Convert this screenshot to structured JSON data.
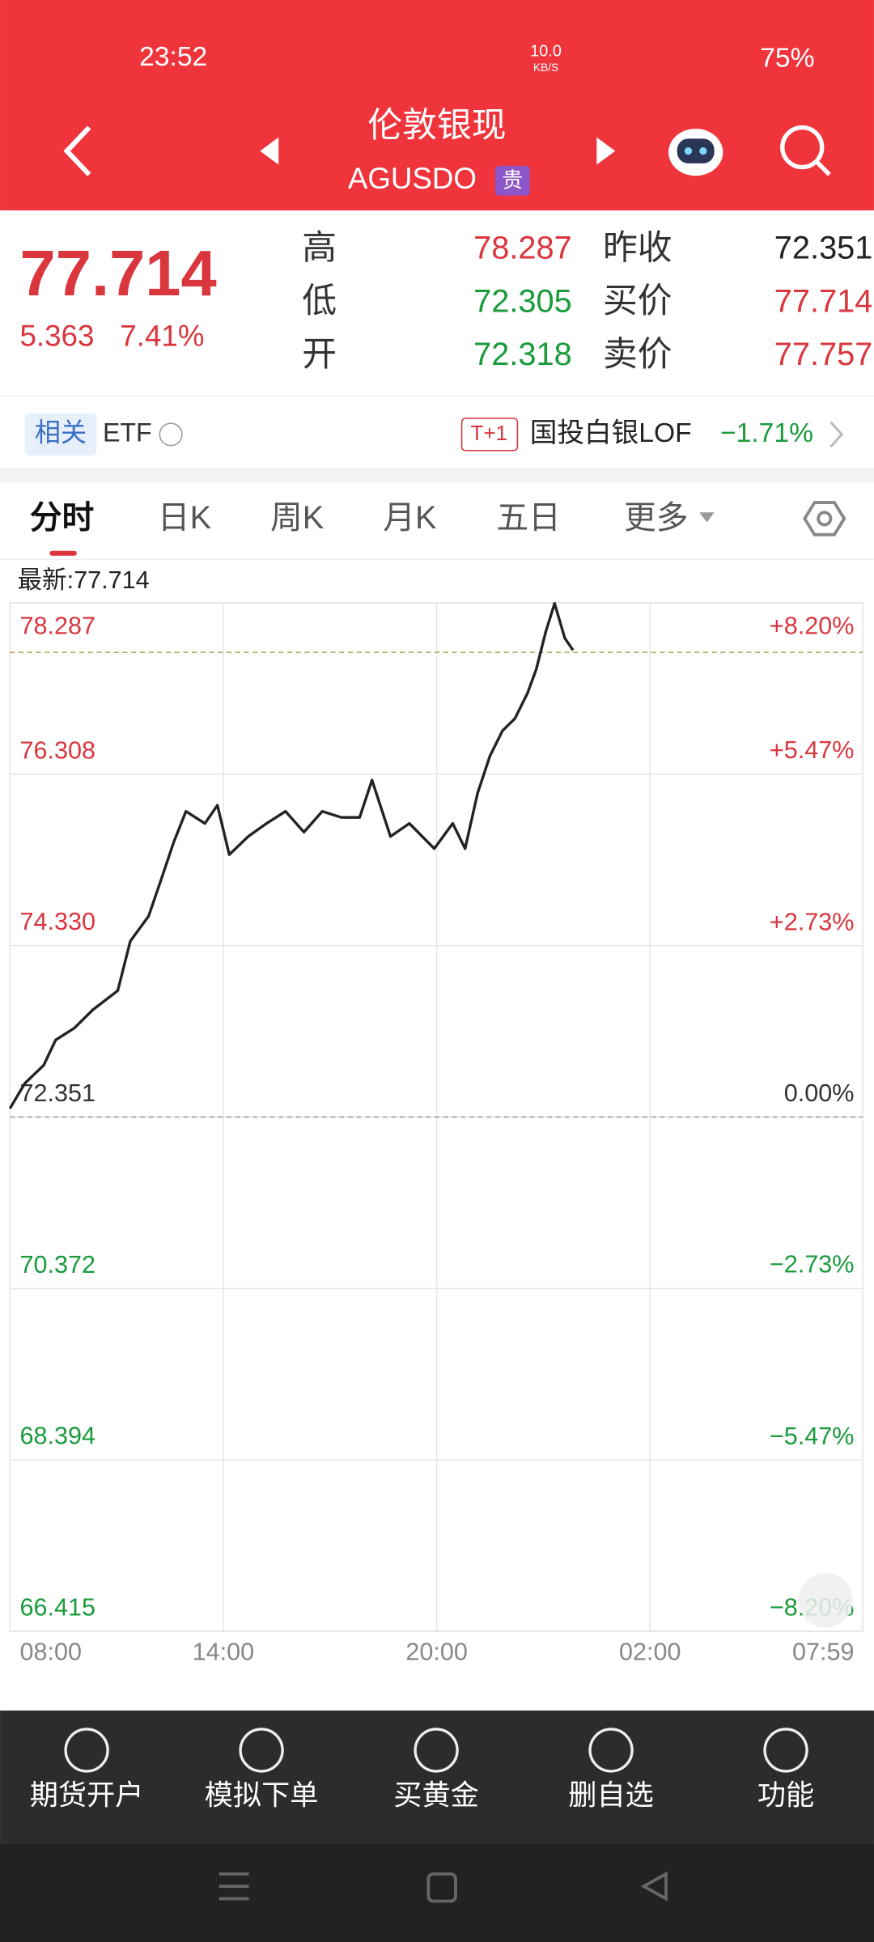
{
  "status_bar": {
    "time": "23:52",
    "net_speed": "10.0",
    "net_unit": "KB/S",
    "battery": "75%"
  },
  "header": {
    "title": "伦敦银现",
    "code": "AGUSDO",
    "tag": "贵"
  },
  "quote": {
    "price": "77.714",
    "change": "5.363",
    "change_pct": "7.41%",
    "stats_left": [
      {
        "label": "高",
        "value": "78.287"
      },
      {
        "label": "低",
        "value": "72.305"
      },
      {
        "label": "开",
        "value": "72.318"
      }
    ],
    "stats_right": [
      {
        "label": "昨收",
        "value": "72.351"
      },
      {
        "label": "买价",
        "value": "77.714"
      },
      {
        "label": "卖价",
        "value": "77.757"
      }
    ]
  },
  "related": {
    "tag": "相关",
    "label": "ETF",
    "fund_tag": "T+1",
    "fund_name": "国投白银LOF",
    "fund_change": "−1.71%"
  },
  "tabs": [
    "分时",
    "日K",
    "周K",
    "月K",
    "五日",
    "更多"
  ],
  "chart_data": {
    "type": "line",
    "latest_label": "最新:77.714",
    "x": [
      0,
      25,
      57,
      77,
      109,
      140,
      182,
      203,
      234,
      255,
      276,
      297,
      329,
      350,
      370,
      402,
      433,
      465,
      496,
      527,
      559,
      590,
      611,
      642,
      674,
      716,
      747,
      768,
      789,
      810,
      831,
      852,
      873,
      888,
      904,
      919,
      936,
      950
    ],
    "values": [
      72.45,
      72.74,
      72.95,
      73.24,
      73.38,
      73.59,
      73.81,
      74.38,
      74.67,
      75.09,
      75.52,
      75.88,
      75.74,
      75.95,
      75.38,
      75.59,
      75.74,
      75.88,
      75.64,
      75.88,
      75.81,
      75.81,
      76.24,
      75.59,
      75.74,
      75.45,
      75.74,
      75.45,
      76.09,
      76.52,
      76.81,
      76.95,
      77.24,
      77.52,
      77.95,
      78.28,
      77.88,
      77.74
    ],
    "color": "#222222",
    "xlim": [
      0,
      1439
    ],
    "xticks": [
      {
        "value": 0,
        "label": "08:00"
      },
      {
        "value": 360,
        "label": "14:00"
      },
      {
        "value": 720,
        "label": "20:00"
      },
      {
        "value": 1080,
        "label": "02:00"
      },
      {
        "value": 1439,
        "label": "07:59"
      }
    ],
    "ylim": [
      66.415,
      78.287
    ],
    "yticks": [
      78.287,
      76.308,
      {
        "value": 74.33,
        "label": "74.330"
      },
      72.351,
      70.372,
      68.394,
      66.415
    ],
    "y2lim": [
      -8.2,
      8.2
    ],
    "y2ticks": [
      {
        "value": 8.2,
        "label": "+8.20%"
      },
      {
        "value": 5.47,
        "label": "+5.47%"
      },
      {
        "value": 2.73,
        "label": "+2.73%"
      },
      {
        "value": 0,
        "label": "0.00%"
      },
      {
        "value": -2.73,
        "label": "−2.73%"
      },
      {
        "value": -5.47,
        "label": "−5.47%"
      },
      {
        "value": -8.2,
        "label": "−8.20%"
      }
    ],
    "hlines": [
      77.714,
      72.351
    ],
    "grid": true
  },
  "bottom_nav": [
    "期货开户",
    "模拟下单",
    "买黄金",
    "删自选",
    "功能"
  ]
}
